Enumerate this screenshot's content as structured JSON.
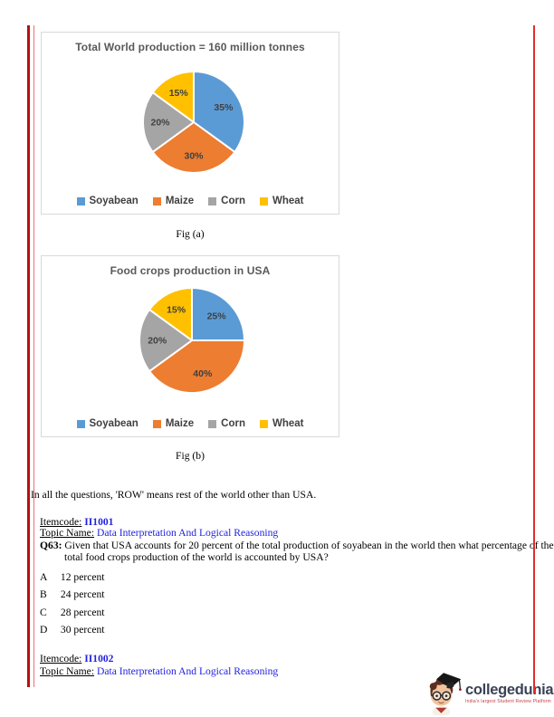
{
  "chart_data": [
    {
      "type": "pie",
      "title": "Total World production = 160 million tonnes",
      "categories": [
        "Soyabean",
        "Maize",
        "Corn",
        "Wheat"
      ],
      "values": [
        35,
        30,
        20,
        15
      ],
      "labels": [
        "35%",
        "30%",
        "20%",
        "15%"
      ],
      "colors": [
        "#5B9BD5",
        "#ED7D31",
        "#A5A5A5",
        "#FFC000"
      ],
      "start_angle_deg": 0,
      "direction": "clockwise",
      "legend_position": "bottom",
      "caption": "Fig (a)"
    },
    {
      "type": "pie",
      "title": "Food crops production in USA",
      "categories": [
        "Soyabean",
        "Maize",
        "Corn",
        "Wheat"
      ],
      "values": [
        25,
        40,
        20,
        15
      ],
      "labels": [
        "25%",
        "40%",
        "20%",
        "15%"
      ],
      "colors": [
        "#5B9BD5",
        "#ED7D31",
        "#A5A5A5",
        "#FFC000"
      ],
      "start_angle_deg": 0,
      "direction": "clockwise",
      "legend_position": "bottom",
      "caption": "Fig (b)"
    }
  ],
  "note": "In all the questions, 'ROW' means rest of the world other than USA.",
  "items": [
    {
      "itemcode_label": "Itemcode:",
      "itemcode": "II1001",
      "topic_label": "Topic Name:",
      "topic": "Data Interpretation And Logical Reasoning"
    },
    {
      "itemcode_label": "Itemcode:",
      "itemcode": "II1002",
      "topic_label": "Topic Name:",
      "topic": "Data Interpretation And Logical Reasoning"
    }
  ],
  "question": {
    "label": "Q63:",
    "text": "Given that USA accounts for 20 percent of the total production of soyabean in the world then what percentage of the total food crops production of the world is accounted by USA?",
    "options": [
      {
        "letter": "A",
        "text": "12 percent"
      },
      {
        "letter": "B",
        "text": "24 percent"
      },
      {
        "letter": "C",
        "text": "28 percent"
      },
      {
        "letter": "D",
        "text": "30 percent"
      }
    ]
  },
  "logo": {
    "brand": "collegedunia",
    "tagline": "India's largest Student Review Platform"
  },
  "colors": {
    "pie_blue": "#5B9BD5",
    "pie_orange": "#ED7D31",
    "pie_gray": "#A5A5A5",
    "pie_yellow": "#FFC000",
    "chart_title_text": "#595959",
    "chart_label_text": "#404040",
    "link_blue": "#2121e0",
    "left_margin_line_dark": "#b31111",
    "left_margin_line_light": "#ef6f6f",
    "right_margin_line": "#e52b2b",
    "brand_navy": "#3a4356",
    "tagline_red": "#c23b42"
  }
}
